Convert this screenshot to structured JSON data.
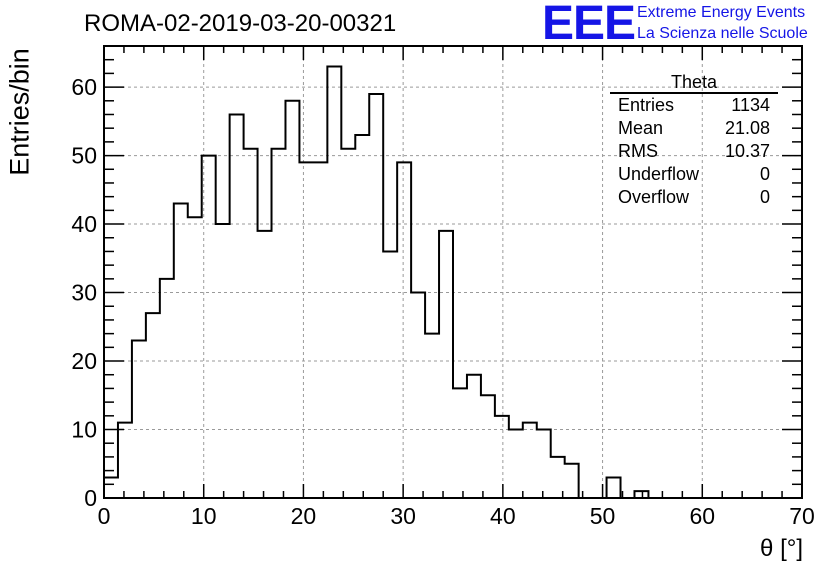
{
  "header": {
    "title": "ROMA-02-2019-03-20-00321",
    "logo_text": "EEE",
    "logo_line1": "Extreme Energy Events",
    "logo_line2": "La Scienza nelle Scuole",
    "brand_color": "#1515e6"
  },
  "stats_box": {
    "title": "Theta",
    "rows": [
      {
        "label": "Entries",
        "value": "1134"
      },
      {
        "label": "Mean",
        "value": "21.08"
      },
      {
        "label": "RMS",
        "value": "10.37"
      },
      {
        "label": "Underflow",
        "value": "0"
      },
      {
        "label": "Overflow",
        "value": "0"
      }
    ]
  },
  "chart_data": {
    "type": "bar",
    "style": "step-histogram",
    "title": "ROMA-02-2019-03-20-00321",
    "xlabel": "θ [°]",
    "ylabel": "Entries/bin",
    "xlim": [
      0,
      70
    ],
    "ylim": [
      0,
      66
    ],
    "bin_width": 1.4,
    "xticks": [
      "0",
      "10",
      "20",
      "30",
      "40",
      "50",
      "60",
      "70"
    ],
    "yticks": [
      "0",
      "10",
      "20",
      "30",
      "40",
      "50",
      "60"
    ],
    "grid": true,
    "values": [
      3,
      11,
      23,
      27,
      32,
      43,
      41,
      50,
      40,
      56,
      51,
      39,
      51,
      58,
      49,
      49,
      63,
      51,
      53,
      59,
      36,
      49,
      30,
      24,
      39,
      16,
      18,
      15,
      12,
      10,
      11,
      10,
      6,
      5,
      0,
      0,
      3,
      0,
      1,
      0,
      0,
      0,
      0,
      0,
      0,
      0,
      0,
      0,
      0,
      0
    ],
    "line_color": "#000000"
  }
}
